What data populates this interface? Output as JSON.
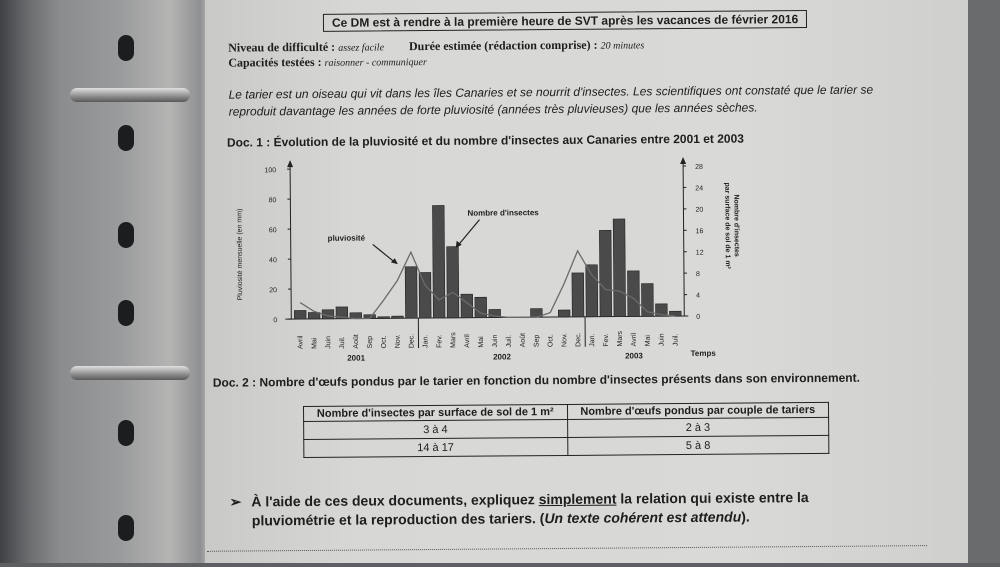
{
  "header": {
    "title": "Ce DM est à rendre à la première heure de SVT après les vacances de février 2016"
  },
  "meta": {
    "difficulty_label": "Niveau de difficulté :",
    "difficulty_value": "assez facile",
    "duration_label": "Durée estimée (rédaction comprise) :",
    "duration_value": "20 minutes",
    "skills_label": "Capacités testées :",
    "skills_value": "raisonner - communiquer"
  },
  "intro": [
    "Le tarier est un oiseau qui vit dans les îles Canaries et se nourrit d'insectes. Les scientifiques ont  constaté que le tarier se",
    "reproduit davantage les années de forte pluviosité (années très pluvieuses) que les années sèches."
  ],
  "doc1": {
    "title": "Doc. 1 : Évolution de la pluviosité et du nombre d'insectes aux Canaries entre 2001 et 2003"
  },
  "chart_data": {
    "type": "bar",
    "title": "Doc. 1 : Évolution de la pluviosité et du nombre d'insectes aux Canaries entre 2001 et 2003",
    "categories": [
      "Avril",
      "Mai",
      "Juin",
      "Juil.",
      "Août",
      "Sep",
      "Oct.",
      "Nov.",
      "Dec.",
      "Jan.",
      "Fev.",
      "Mars",
      "Avril",
      "Mai",
      "Juin",
      "Juil.",
      "Août",
      "Sep",
      "Oct.",
      "Nov.",
      "Dec.",
      "Jan.",
      "Fev.",
      "Mars",
      "Avril",
      "Mai",
      "Juin",
      "Juil."
    ],
    "years": [
      {
        "label": "2001",
        "from": 0
      },
      {
        "label": "2002",
        "from": 9
      },
      {
        "label": "2003",
        "from": 21
      }
    ],
    "xlabel": "Temps",
    "ylabel_left": "Pluviosité mensuelle (en mm)",
    "ylabel_right": "Nombre d'insectes par surface de sol de 1 m²",
    "ylim_left": [
      0,
      100
    ],
    "yticks_left": [
      0,
      20,
      40,
      60,
      80,
      100
    ],
    "ylim_right": [
      0,
      28
    ],
    "yticks_right": [
      0,
      4,
      8,
      12,
      16,
      20,
      24,
      28
    ],
    "grid": false,
    "series": [
      {
        "name": "Nombre d'insectes",
        "type": "bar",
        "axis": "right",
        "color": "#4a4a4a",
        "values": [
          1.6,
          1.2,
          1.7,
          2.2,
          1.1,
          0.7,
          0.3,
          0.4,
          9.6,
          8.5,
          21,
          13.3,
          4.4,
          3.8,
          1.5,
          0,
          0,
          1.6,
          0,
          1.3,
          8.2,
          9.7,
          16.1,
          18.2,
          8.5,
          6.1,
          2.3,
          0.9
        ]
      },
      {
        "name": "pluviosité",
        "type": "line",
        "axis": "left",
        "color": "#6a6a6a",
        "values": [
          11,
          5,
          2,
          1,
          0,
          0,
          12,
          25,
          44,
          22,
          12,
          17,
          10,
          3,
          1,
          0,
          0,
          0,
          3,
          22,
          44,
          28,
          18,
          17,
          12,
          3,
          1,
          0
        ]
      }
    ]
  },
  "doc2": {
    "title": "Doc. 2 : Nombre d'œufs pondus par le tarier en fonction du nombre d'insectes présents dans son environnement.",
    "headers": [
      "Nombre d'insectes par surface de sol de 1 m²",
      "Nombre d'œufs pondus par couple de tariers"
    ],
    "rows": [
      [
        "3 à 4",
        "2 à 3"
      ],
      [
        "14 à 17",
        "5 à 8"
      ]
    ]
  },
  "question": {
    "bullet": "➢",
    "part1": "À l'aide de ces deux documents, expliquez ",
    "underlined": "simplement",
    "part2": " la relation qui existe entre la",
    "line2_a": "pluviométrie et la reproduction des tariers. (",
    "line2_italic": "Un texte cohérent est attendu",
    "line2_b": ")."
  }
}
